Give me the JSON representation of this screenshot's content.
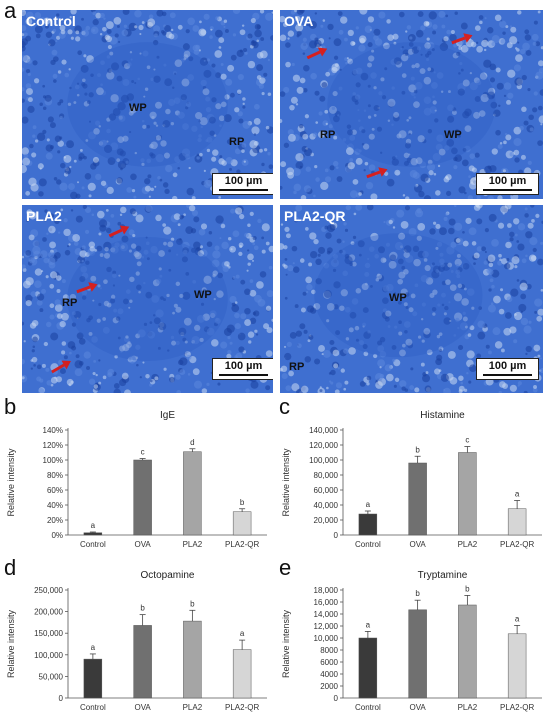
{
  "panel_letters": {
    "a": "a",
    "b": "b",
    "c": "c",
    "d": "d",
    "e": "e"
  },
  "micrographs": [
    {
      "label": "Control",
      "regions": [
        "WP",
        "RP"
      ],
      "scale": "100 µm",
      "arrows": 0
    },
    {
      "label": "OVA",
      "regions": [
        "RP",
        "WP"
      ],
      "scale": "100 µm",
      "arrows": 3
    },
    {
      "label": "PLA2",
      "regions": [
        "RP",
        "WP"
      ],
      "scale": "100 µm",
      "arrows": 3
    },
    {
      "label": "PLA2-QR",
      "regions": [
        "WP",
        "RP"
      ],
      "scale": "100 µm",
      "arrows": 0
    }
  ],
  "colors": {
    "stain_dark": "#1a3f9e",
    "stain_mid": "#3f6fd0",
    "stain_light": "#c9d8f2",
    "arrow": "#d42020",
    "bar_control": "#3a3a3a",
    "bar_ova": "#707070",
    "bar_pla2": "#a5a5a5",
    "bar_plaqr": "#d6d6d6"
  },
  "chart_data": [
    {
      "type": "bar",
      "title": "IgE",
      "ylabel": "Relative intensity",
      "categories": [
        "Control",
        "OVA",
        "PLA2",
        "PLA2-QR"
      ],
      "values": [
        3,
        100,
        111,
        31
      ],
      "errors": [
        1,
        2,
        4,
        4
      ],
      "sig": [
        "a",
        "c",
        "d",
        "b"
      ],
      "yticks": [
        "0%",
        "20%",
        "40%",
        "60%",
        "80%",
        "100%",
        "120%",
        "140%"
      ],
      "ylim": [
        0,
        140
      ]
    },
    {
      "type": "bar",
      "title": "Histamine",
      "ylabel": "Relative intensity",
      "categories": [
        "Control",
        "OVA",
        "PLA2",
        "PLA2-QR"
      ],
      "values": [
        28000,
        96000,
        110000,
        35000
      ],
      "errors": [
        4000,
        9000,
        8000,
        11000
      ],
      "sig": [
        "a",
        "b",
        "c",
        "a"
      ],
      "yticks": [
        "0",
        "20,000",
        "40,000",
        "60,000",
        "80,000",
        "100,000",
        "120,000",
        "140,000"
      ],
      "ylim": [
        0,
        140000
      ]
    },
    {
      "type": "bar",
      "title": "Octopamine",
      "ylabel": "Relative intensity",
      "categories": [
        "Control",
        "OVA",
        "PLA2",
        "PLA2-QR"
      ],
      "values": [
        90000,
        168000,
        178000,
        112000
      ],
      "errors": [
        12000,
        25000,
        25000,
        22000
      ],
      "sig": [
        "a",
        "b",
        "b",
        "a"
      ],
      "yticks": [
        "0",
        "50,000",
        "100,000",
        "150,000",
        "200,000",
        "250,000"
      ],
      "ylim": [
        0,
        250000
      ]
    },
    {
      "type": "bar",
      "title": "Tryptamine",
      "ylabel": "Relative intensity",
      "categories": [
        "Control",
        "OVA",
        "PLA2",
        "PLA2-QR"
      ],
      "values": [
        10000,
        14700,
        15500,
        10700
      ],
      "errors": [
        1100,
        1600,
        1600,
        1400
      ],
      "sig": [
        "a",
        "b",
        "b",
        "a"
      ],
      "yticks": [
        "0",
        "2000",
        "4000",
        "6000",
        "8000",
        "10,000",
        "12,000",
        "14,000",
        "16,000",
        "18,000"
      ],
      "ylim": [
        0,
        18000
      ]
    }
  ]
}
